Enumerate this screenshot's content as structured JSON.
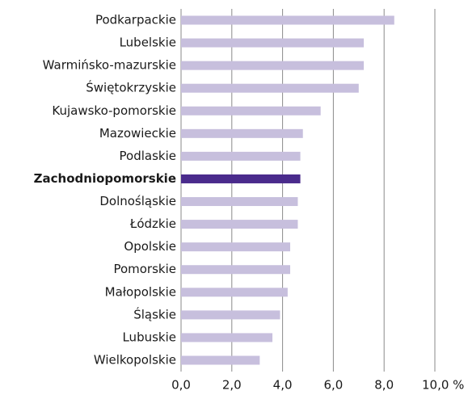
{
  "chart_data": {
    "type": "barh",
    "categories": [
      "Podkarpackie",
      "Lubelskie",
      "Warmińsko-mazurskie",
      "Świętokrzyskie",
      "Kujawsko-pomorskie",
      "Mazowieckie",
      "Podlaskie",
      "Zachodniopomorskie",
      "Dolnośląskie",
      "Łódzkie",
      "Opolskie",
      "Pomorskie",
      "Małopolskie",
      "Śląskie",
      "Lubuskie",
      "Wielkopolskie"
    ],
    "values": [
      8.4,
      7.2,
      7.2,
      7.0,
      5.5,
      4.8,
      4.7,
      4.7,
      4.6,
      4.6,
      4.3,
      4.3,
      4.2,
      3.9,
      3.6,
      3.1
    ],
    "color": "#c7bfdd",
    "highlight": "Zachodniopomorskie",
    "highlight_color": "#4a2b8c",
    "xlim": [
      0,
      10
    ],
    "xticks": [
      {
        "value": 0,
        "label": "0,0"
      },
      {
        "value": 2,
        "label": "2,0"
      },
      {
        "value": 4,
        "label": "4,0"
      },
      {
        "value": 6,
        "label": "6,0"
      },
      {
        "value": 8,
        "label": "8,0"
      },
      {
        "value": 10,
        "label": "10,0 %"
      }
    ],
    "grid": true
  }
}
